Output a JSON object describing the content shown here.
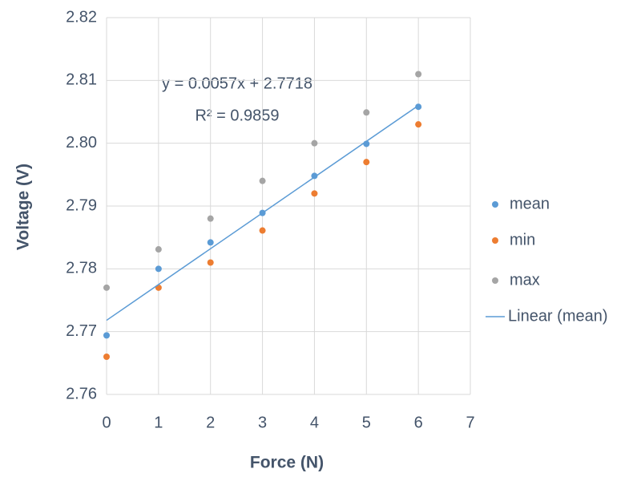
{
  "chart_data": {
    "type": "scatter",
    "x_label": "Force   (N)",
    "y_label": "Voltage   (V)",
    "x": [
      0,
      1,
      2,
      3,
      4,
      5,
      6
    ],
    "series": [
      {
        "name": "mean",
        "color": "#5b9bd5",
        "values": [
          2.7694,
          2.78,
          2.7842,
          2.7889,
          2.7948,
          2.7999,
          2.8058
        ]
      },
      {
        "name": "min",
        "color": "#ed7d31",
        "values": [
          2.766,
          2.777,
          2.781,
          2.7861,
          2.792,
          2.797,
          2.803
        ]
      },
      {
        "name": "max",
        "color": "#a5a5a5",
        "values": [
          2.777,
          2.7831,
          2.788,
          2.794,
          2.8,
          2.8049,
          2.811
        ]
      },
      {
        "name": "Linear (mean)",
        "type": "line",
        "color": "#5b9bd5",
        "x": [
          0,
          6
        ],
        "values": [
          2.7718,
          2.806
        ]
      }
    ],
    "annotations": [
      "y = 0.0057x + 2.7718",
      "R² = 0.9859"
    ],
    "xlim": [
      0,
      7
    ],
    "xticks": [
      0,
      1,
      2,
      3,
      4,
      5,
      6,
      7
    ],
    "ylim": [
      2.76,
      2.82
    ],
    "yticks": [
      2.76,
      2.77,
      2.78,
      2.79,
      {
        "value": 2.8,
        "label": "2.80"
      },
      2.81,
      2.82
    ],
    "grid": true,
    "legend": "right"
  }
}
